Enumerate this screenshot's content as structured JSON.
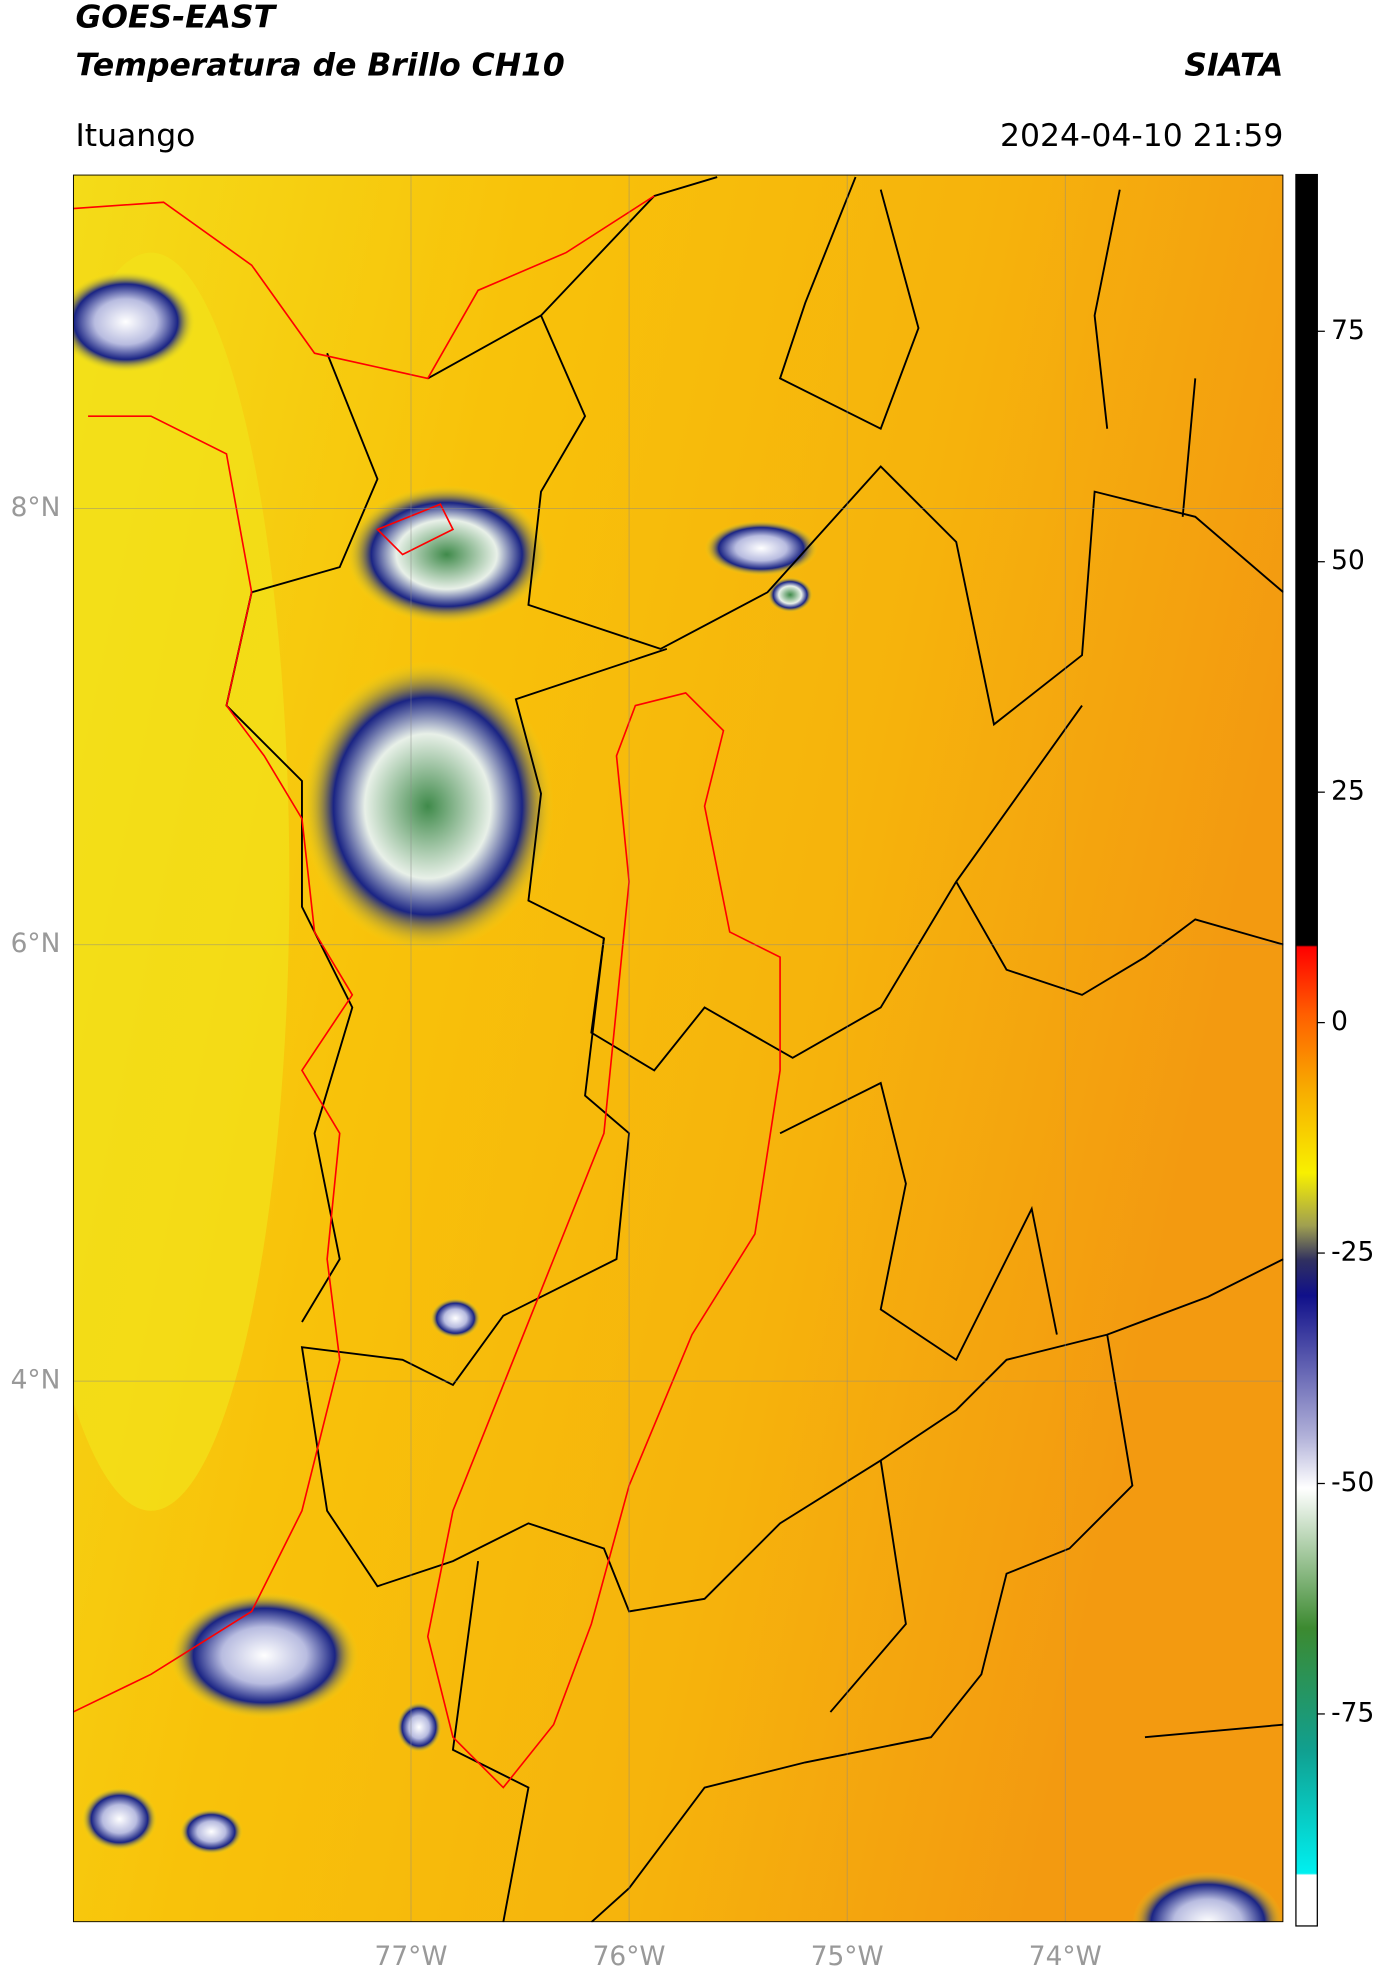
{
  "header": {
    "title": "GOES-EAST",
    "subtitle": "Temperatura de Brillo CH10",
    "source": "SIATA",
    "location": "Ituango",
    "datetime": "2024-04-10 21:59"
  },
  "map": {
    "xlim": [
      -78.55,
      -73.0
    ],
    "ylim": [
      1.52,
      9.53
    ],
    "xticks": [
      {
        "value": -77,
        "label": "77°W"
      },
      {
        "value": -76,
        "label": "76°W"
      },
      {
        "value": -75,
        "label": "75°W"
      },
      {
        "value": -74,
        "label": "74°W"
      }
    ],
    "yticks": [
      {
        "value": 8,
        "label": "8°N"
      },
      {
        "value": 6,
        "label": "6°N"
      },
      {
        "value": 4,
        "label": "4°N"
      }
    ],
    "grid": true
  },
  "colorbar": {
    "ylim": [
      -98,
      92
    ],
    "yticks": [
      75,
      50,
      25,
      0,
      -25,
      -50,
      -75
    ]
  }
}
